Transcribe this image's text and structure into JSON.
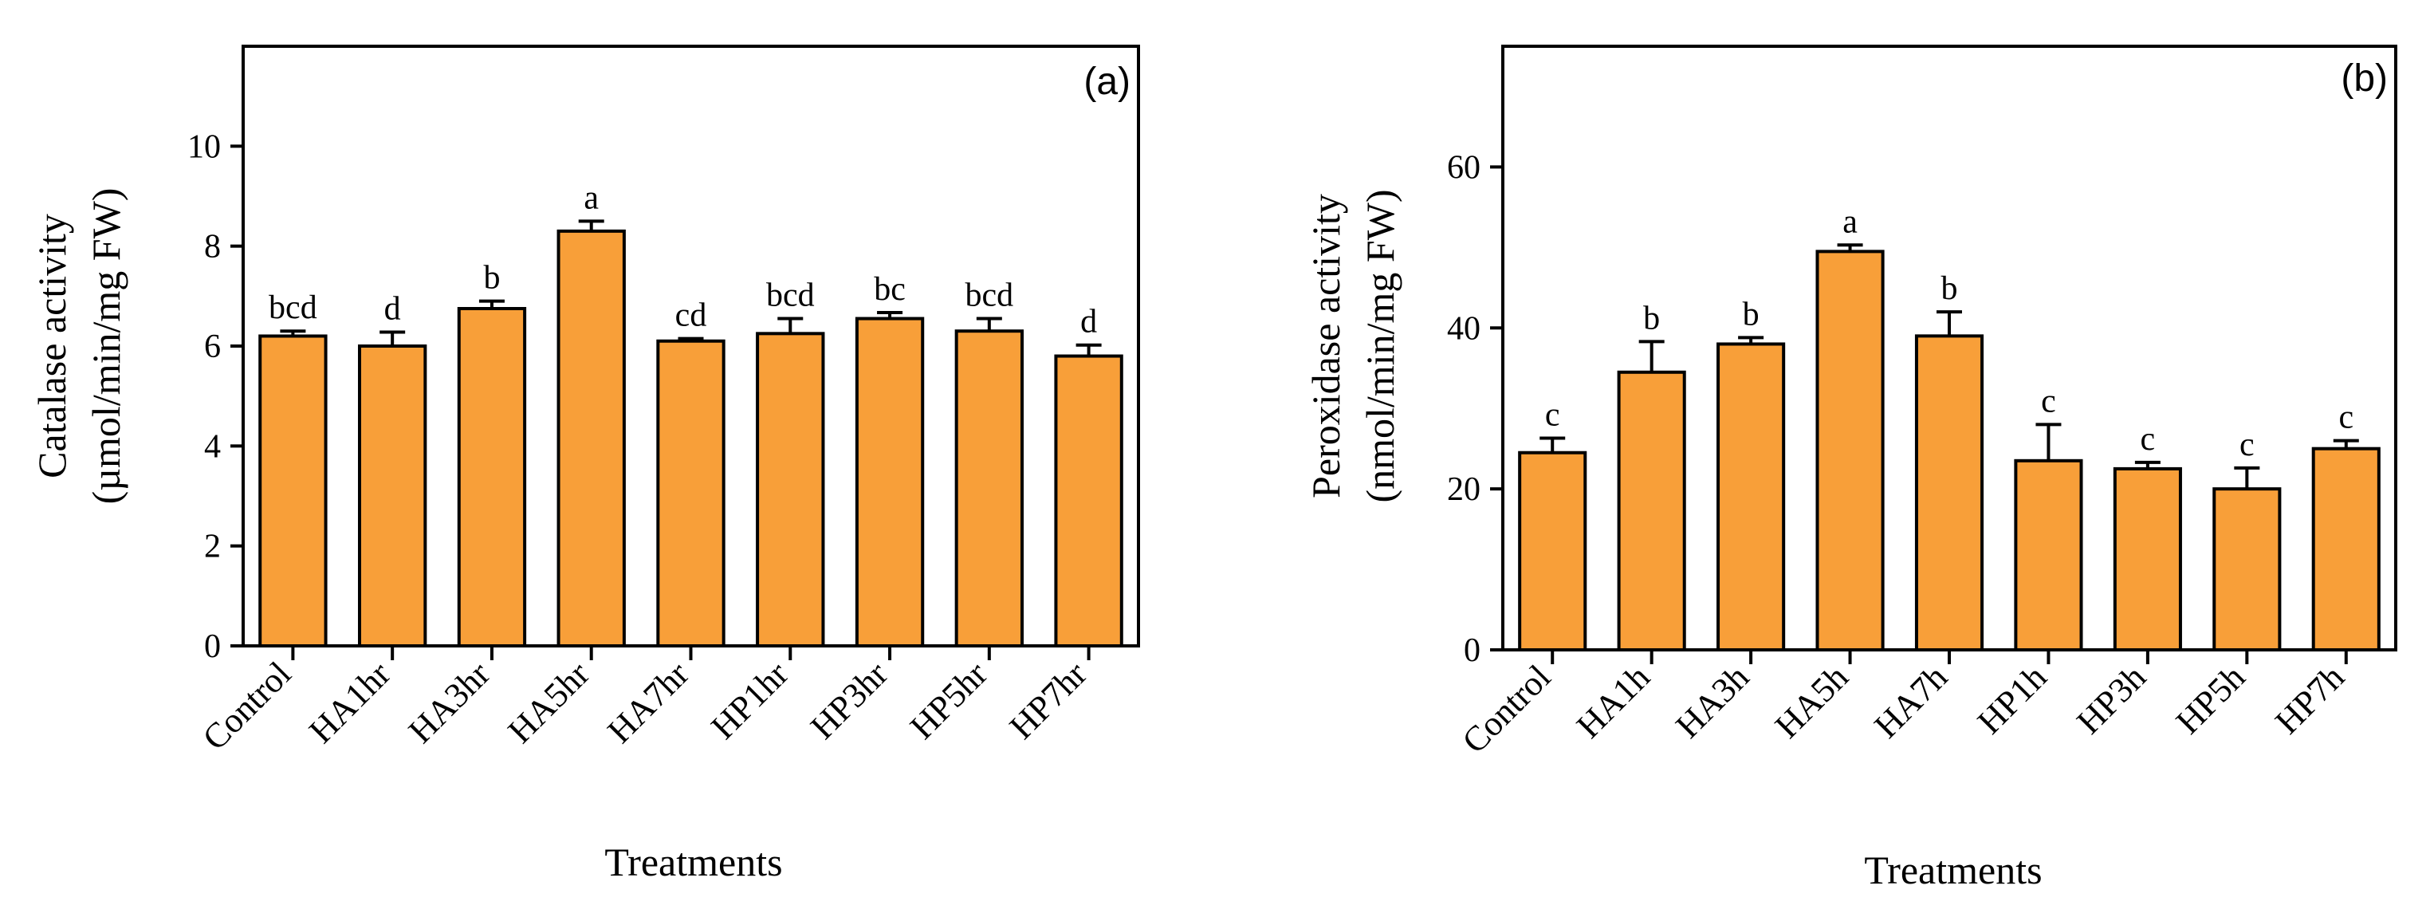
{
  "chart_data": [
    {
      "type": "bar",
      "panel_label": "(a)",
      "title": "",
      "xlabel": "Treatments",
      "ylabel": [
        "Catalase activity",
        "(µmol/min/mg FW)"
      ],
      "categories": [
        "Control",
        "HA1hr",
        "HA3hr",
        "HA5hr",
        "HA7hr",
        "HP1hr",
        "HP3hr",
        "HP5hr",
        "HP7hr"
      ],
      "values": [
        6.2,
        6.0,
        6.75,
        8.3,
        6.1,
        6.25,
        6.55,
        6.3,
        5.8
      ],
      "errors": [
        0.1,
        0.28,
        0.15,
        0.2,
        0.05,
        0.3,
        0.12,
        0.25,
        0.22
      ],
      "significance_labels": [
        "bcd",
        "d",
        "b",
        "a",
        "cd",
        "bcd",
        "bc",
        "bcd",
        "d"
      ],
      "ylim": [
        0,
        12
      ],
      "yticks": [
        0,
        2,
        4,
        6,
        8,
        10
      ],
      "ytick_labels": [
        "0",
        "2",
        "4",
        "6",
        "8",
        "10"
      ],
      "bar_color": "#f89f39",
      "edge_color": "#000000",
      "grid": false
    },
    {
      "type": "bar",
      "panel_label": "(b)",
      "title": "",
      "xlabel": "Treatments",
      "ylabel": [
        "Peroxidase activity",
        "(nmol/min/mg FW)"
      ],
      "categories": [
        "Control",
        "HA1h",
        "HA3h",
        "HA5h",
        "HA7h",
        "HP1h",
        "HP3h",
        "HP5h",
        "HP7h"
      ],
      "values": [
        24.5,
        34.5,
        38.0,
        49.5,
        39.0,
        23.5,
        22.5,
        20.0,
        25.0
      ],
      "errors": [
        1.8,
        3.8,
        0.8,
        0.8,
        3.0,
        4.5,
        0.8,
        2.6,
        1.0
      ],
      "significance_labels": [
        "c",
        "b",
        "b",
        "a",
        "b",
        "c",
        "c",
        "c",
        "c"
      ],
      "ylim": [
        0,
        75
      ],
      "yticks": [
        0,
        20,
        40,
        60
      ],
      "ytick_labels": [
        "0",
        "20",
        "40",
        "60"
      ],
      "bar_color": "#f89f39",
      "edge_color": "#000000",
      "grid": false
    }
  ]
}
